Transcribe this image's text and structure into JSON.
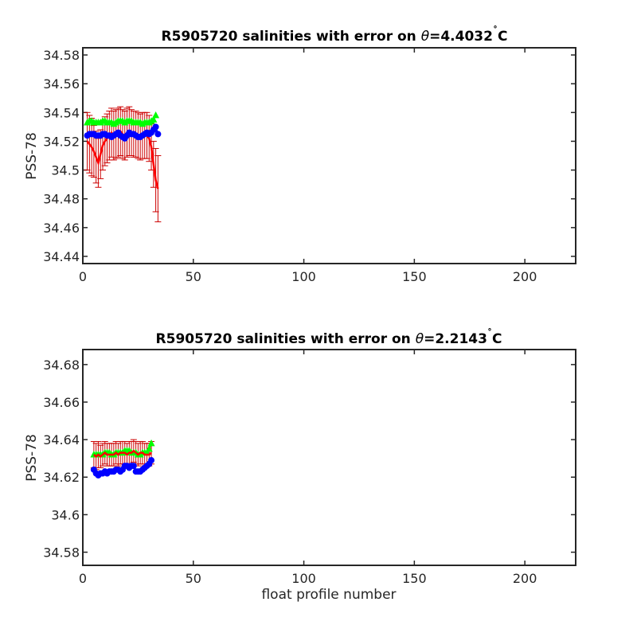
{
  "colors": {
    "float": "#0000ff",
    "mapped": "#ff0000",
    "calibrated": "#00ff00",
    "axes": "#262626",
    "errorbar": "#cc0000"
  },
  "chart_data": [
    {
      "type": "line",
      "title_prefix": "R5905720 salinities with error on ",
      "title_theta": "θ",
      "title_value": "=4.4032",
      "title_degree": "˚",
      "title_unit": "C",
      "xlabel": "",
      "ylabel": "PSS-78",
      "xlim": [
        0,
        223
      ],
      "ylim": [
        34.435,
        34.585
      ],
      "xticks": [
        0,
        50,
        100,
        150,
        200
      ],
      "yticks": [
        34.44,
        34.46,
        34.48,
        34.5,
        34.52,
        34.54,
        34.56,
        34.58
      ],
      "ytick_labels": [
        "34.44",
        "34.46",
        "34.48",
        "34.5",
        "34.52",
        "34.54",
        "34.56",
        "34.58"
      ],
      "grid": false,
      "series": [
        {
          "role": "float",
          "marker": "circle",
          "x": [
            2,
            3,
            4,
            5,
            6,
            7,
            8,
            9,
            10,
            11,
            12,
            13,
            14,
            15,
            16,
            17,
            18,
            19,
            20,
            21,
            22,
            23,
            24,
            25,
            26,
            27,
            28,
            29,
            30,
            31,
            32,
            33,
            34
          ],
          "values": [
            34.524,
            34.525,
            34.525,
            34.525,
            34.524,
            34.524,
            34.524,
            34.525,
            34.525,
            34.524,
            34.524,
            34.523,
            34.524,
            34.525,
            34.526,
            34.524,
            34.523,
            34.522,
            34.524,
            34.526,
            34.525,
            34.525,
            34.524,
            34.523,
            34.523,
            34.524,
            34.525,
            34.526,
            34.525,
            34.526,
            34.528,
            34.53,
            34.525
          ]
        },
        {
          "role": "mapped",
          "marker": "none",
          "x": [
            2,
            3,
            4,
            5,
            6,
            7,
            8,
            9,
            10,
            11,
            12,
            13,
            14,
            15,
            16,
            17,
            18,
            19,
            20,
            21,
            22,
            23,
            24,
            25,
            26,
            27,
            28,
            29,
            30,
            31,
            32,
            33,
            34
          ],
          "values": [
            34.52,
            34.518,
            34.516,
            34.513,
            34.509,
            34.505,
            34.511,
            34.517,
            34.52,
            34.522,
            34.524,
            34.526,
            34.524,
            34.525,
            34.526,
            34.527,
            34.525,
            34.524,
            34.526,
            34.527,
            34.526,
            34.525,
            34.525,
            34.524,
            34.523,
            34.524,
            34.524,
            34.524,
            34.522,
            34.516,
            34.504,
            34.493,
            34.487
          ],
          "err": [
            0.02,
            0.02,
            0.02,
            0.018,
            0.018,
            0.017,
            0.017,
            0.017,
            0.017,
            0.017,
            0.017,
            0.017,
            0.017,
            0.017,
            0.017,
            0.017,
            0.017,
            0.017,
            0.017,
            0.017,
            0.016,
            0.016,
            0.016,
            0.016,
            0.016,
            0.016,
            0.016,
            0.016,
            0.016,
            0.016,
            0.016,
            0.022,
            0.023
          ]
        },
        {
          "role": "calibrated",
          "marker": "triangle",
          "x": [
            2,
            3,
            4,
            5,
            6,
            7,
            8,
            9,
            10,
            11,
            12,
            13,
            14,
            15,
            16,
            17,
            18,
            19,
            20,
            21,
            22,
            23,
            24,
            25,
            26,
            27,
            28,
            29,
            30,
            31,
            32,
            33
          ],
          "values": [
            34.533,
            34.534,
            34.534,
            34.533,
            34.533,
            34.533,
            34.533,
            34.534,
            34.534,
            34.533,
            34.533,
            34.533,
            34.532,
            34.533,
            34.534,
            34.534,
            34.534,
            34.533,
            34.534,
            34.534,
            34.534,
            34.533,
            34.533,
            34.533,
            34.533,
            34.532,
            34.533,
            34.533,
            34.533,
            34.534,
            34.535,
            34.538
          ]
        }
      ]
    },
    {
      "type": "line",
      "title_prefix": "R5905720 salinities with error on ",
      "title_theta": "θ",
      "title_value": "=2.2143",
      "title_degree": "˚",
      "title_unit": "C",
      "xlabel": "float profile number",
      "ylabel": "PSS-78",
      "xlim": [
        0,
        223
      ],
      "ylim": [
        34.573,
        34.688
      ],
      "xticks": [
        0,
        50,
        100,
        150,
        200
      ],
      "yticks": [
        34.58,
        34.6,
        34.62,
        34.64,
        34.66,
        34.68
      ],
      "ytick_labels": [
        "34.58",
        "34.6",
        "34.62",
        "34.64",
        "34.66",
        "34.68"
      ],
      "grid": false,
      "series": [
        {
          "role": "float",
          "marker": "circle",
          "x": [
            5,
            6,
            7,
            8,
            9,
            10,
            11,
            12,
            13,
            14,
            15,
            16,
            17,
            18,
            19,
            20,
            21,
            22,
            23,
            24,
            25,
            26,
            27,
            28,
            29,
            30,
            31
          ],
          "values": [
            34.624,
            34.622,
            34.621,
            34.622,
            34.622,
            34.623,
            34.622,
            34.623,
            34.623,
            34.623,
            34.624,
            34.624,
            34.623,
            34.624,
            34.626,
            34.626,
            34.625,
            34.626,
            34.626,
            34.623,
            34.623,
            34.623,
            34.624,
            34.625,
            34.626,
            34.627,
            34.629
          ]
        },
        {
          "role": "mapped",
          "marker": "none",
          "x": [
            5,
            6,
            7,
            8,
            9,
            10,
            11,
            12,
            13,
            14,
            15,
            16,
            17,
            18,
            19,
            20,
            21,
            22,
            23,
            24,
            25,
            26,
            27,
            28,
            29,
            30,
            31
          ],
          "values": [
            34.632,
            34.631,
            34.632,
            34.631,
            34.632,
            34.633,
            34.632,
            34.632,
            34.632,
            34.632,
            34.633,
            34.632,
            34.633,
            34.633,
            34.633,
            34.632,
            34.633,
            34.633,
            34.634,
            34.633,
            34.632,
            34.633,
            34.633,
            34.632,
            34.632,
            34.632,
            34.633
          ],
          "err": [
            0.007,
            0.007,
            0.007,
            0.006,
            0.006,
            0.006,
            0.006,
            0.006,
            0.006,
            0.006,
            0.006,
            0.006,
            0.006,
            0.006,
            0.006,
            0.006,
            0.006,
            0.006,
            0.006,
            0.006,
            0.006,
            0.006,
            0.006,
            0.006,
            0.006,
            0.006,
            0.006
          ]
        },
        {
          "role": "calibrated",
          "marker": "triangle",
          "x": [
            5,
            6,
            7,
            8,
            9,
            10,
            11,
            12,
            13,
            14,
            15,
            16,
            17,
            18,
            19,
            20,
            21,
            22,
            23,
            24,
            25,
            26,
            27,
            28,
            29,
            30,
            31
          ],
          "values": [
            34.632,
            34.632,
            34.632,
            34.632,
            34.632,
            34.633,
            34.633,
            34.633,
            34.632,
            34.632,
            34.633,
            34.633,
            34.633,
            34.633,
            34.634,
            34.634,
            34.634,
            34.633,
            34.633,
            34.633,
            34.632,
            34.632,
            34.633,
            34.633,
            34.633,
            34.635,
            34.638
          ]
        }
      ]
    }
  ]
}
